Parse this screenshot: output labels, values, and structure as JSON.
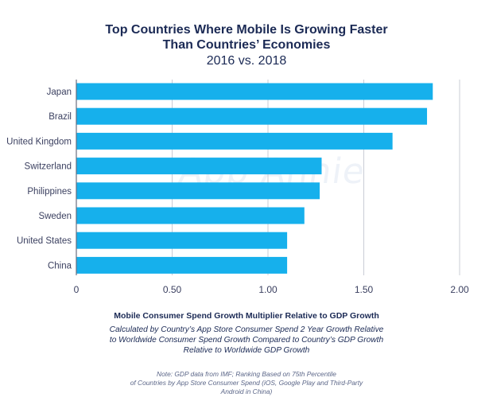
{
  "chart_data": {
    "type": "bar",
    "orientation": "horizontal",
    "title_lines": [
      "Top Countries Where Mobile Is Growing Faster",
      "Than Countries’ Economies"
    ],
    "subtitle": "2016 vs. 2018",
    "categories": [
      "Japan",
      "Brazil",
      "United Kingdom",
      "Switzerland",
      "Philippines",
      "Sweden",
      "United States",
      "China"
    ],
    "values": [
      1.86,
      1.83,
      1.65,
      1.28,
      1.27,
      1.19,
      1.1,
      1.1
    ],
    "xlim": [
      0,
      2.0
    ],
    "xticks": [
      {
        "value": 0,
        "label": "0"
      },
      {
        "value": 0.5,
        "label": "0.50"
      },
      {
        "value": 1.0,
        "label": "1.00"
      },
      {
        "value": 1.5,
        "label": "1.50"
      },
      {
        "value": 2.0,
        "label": "2.00"
      }
    ],
    "grid": "vertical",
    "bar_color": "#16b0ec",
    "xlabel": "Mobile Consumer Spend Growth Multiplier Relative to GDP Growth",
    "xlabel_description_lines": [
      "Calculated by Country’s App Store Consumer Spend 2 Year Growth Relative",
      "to Worldwide Consumer Spend Growth Compared to Country’s GDP Growth",
      "Relative to Worldwide GDP Growth"
    ],
    "note_lines": [
      "Note: GDP data from IMF; Ranking Based on 75th Percentile",
      "of Countries by App Store Consumer Spend (iOS, Google Play and Third-Party",
      "Android in China)"
    ]
  },
  "watermark": "App Annie",
  "colors": {
    "title": "#1b2a55",
    "grid": "#c9ccd6",
    "axis": "#6a6f7e",
    "label": "#3b4060"
  }
}
